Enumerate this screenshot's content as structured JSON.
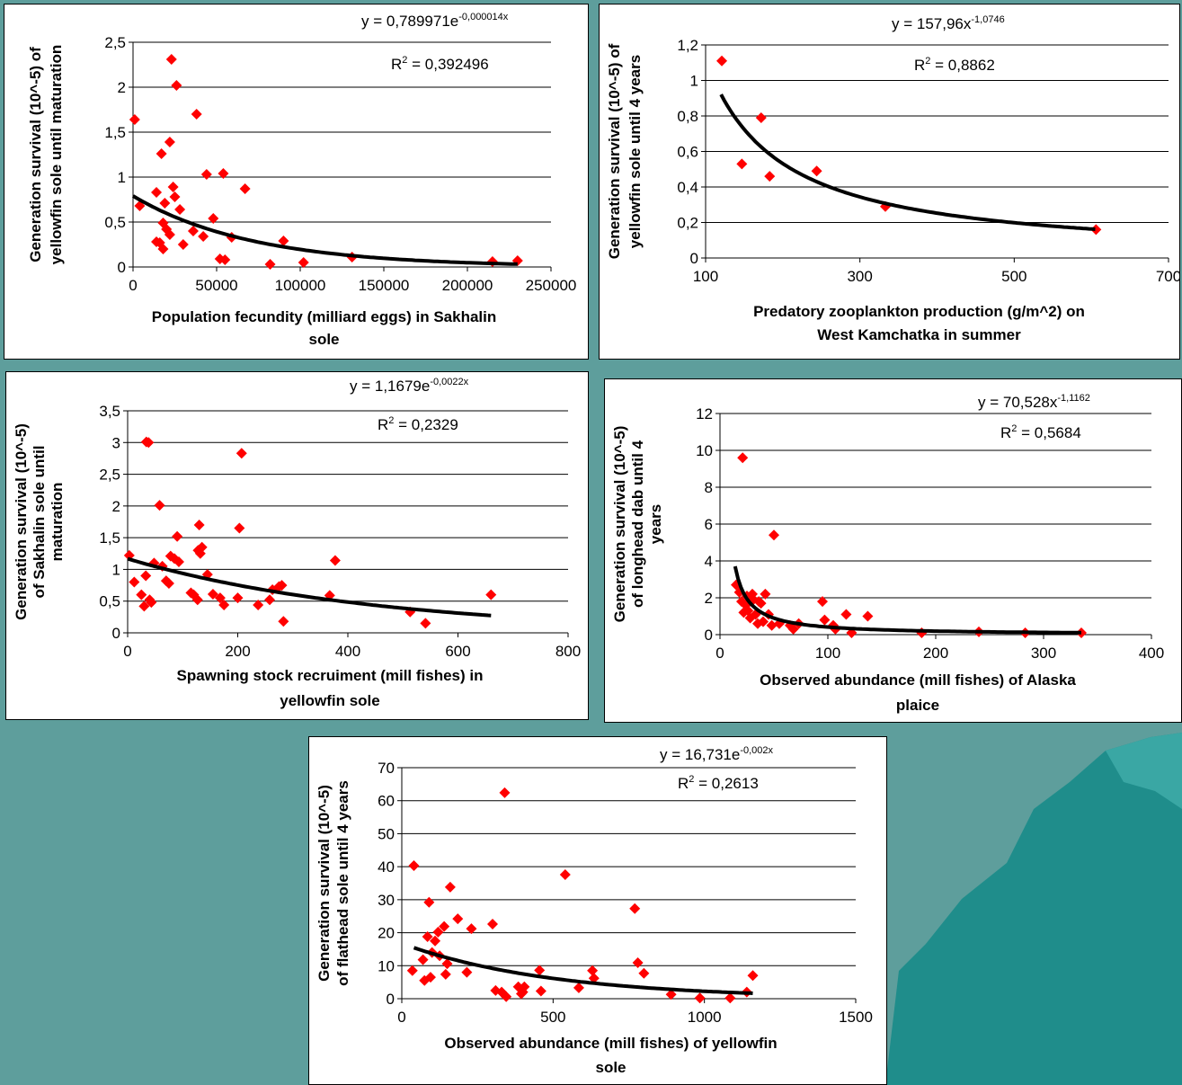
{
  "colors": {
    "background": "#5e9e9c",
    "panel": "#ffffff",
    "marker": "#ff0000",
    "trendline": "#000000",
    "gridline": "#000000"
  },
  "chart_data": [
    {
      "type": "scatter",
      "ylabel_lines": [
        "Generation survival (10^-5) of",
        "yellowfin sole until maturation"
      ],
      "xlabel_lines": [
        "Population fecundity (milliard eggs) in Sakhalin",
        "sole"
      ],
      "equation": {
        "prefix": "y = 0,789971e",
        "exponent": "-0,000014x"
      },
      "r2": {
        "prefix": "R",
        "sup": "2",
        "value": " = 0,392496"
      },
      "xlim": [
        0,
        250000
      ],
      "ylim": [
        0,
        2.5
      ],
      "xticks": [
        0,
        50000,
        100000,
        150000,
        200000,
        250000
      ],
      "yticks": [
        0,
        0.5,
        1,
        1.5,
        2,
        2.5
      ],
      "xtick_labels": [
        "0",
        "50000",
        "100000",
        "150000",
        "200000",
        "250000"
      ],
      "ytick_labels": [
        "0",
        "0,5",
        "1",
        "1,5",
        "2",
        "2,5"
      ],
      "grid": "horizontal",
      "trend": {
        "form": "exp",
        "a": 0.789971,
        "b": -1.4e-05,
        "x_range": [
          0,
          230000
        ]
      },
      "points": [
        [
          1000,
          1.64
        ],
        [
          4000,
          0.68
        ],
        [
          14000,
          0.83
        ],
        [
          14000,
          0.28
        ],
        [
          16000,
          0.27
        ],
        [
          17000,
          1.26
        ],
        [
          18000,
          0.49
        ],
        [
          18000,
          0.2
        ],
        [
          19000,
          0.71
        ],
        [
          20000,
          0.42
        ],
        [
          22000,
          1.39
        ],
        [
          22000,
          0.36
        ],
        [
          23000,
          2.31
        ],
        [
          24000,
          0.89
        ],
        [
          25000,
          0.78
        ],
        [
          26000,
          2.02
        ],
        [
          28000,
          0.64
        ],
        [
          30000,
          0.25
        ],
        [
          36000,
          0.4
        ],
        [
          38000,
          1.7
        ],
        [
          42000,
          0.34
        ],
        [
          44000,
          1.03
        ],
        [
          48000,
          0.54
        ],
        [
          52000,
          0.09
        ],
        [
          54000,
          1.04
        ],
        [
          55000,
          0.08
        ],
        [
          59000,
          0.33
        ],
        [
          67000,
          0.87
        ],
        [
          82000,
          0.03
        ],
        [
          90000,
          0.29
        ],
        [
          102000,
          0.05
        ],
        [
          131000,
          0.11
        ],
        [
          215000,
          0.06
        ],
        [
          230000,
          0.07
        ]
      ]
    },
    {
      "type": "scatter",
      "ylabel_lines": [
        "Generation survival (10^-5) of",
        "yellowfin sole until 4 years"
      ],
      "xlabel_lines": [
        "Predatory zooplankton production (g/m^2) on",
        "West Kamchatka in summer"
      ],
      "equation": {
        "prefix": "y = 157,96x",
        "exponent": "-1,0746"
      },
      "r2": {
        "prefix": "R",
        "sup": "2",
        "value": " = 0,8862"
      },
      "xlim": [
        100,
        700
      ],
      "ylim": [
        0,
        1.2
      ],
      "xticks": [
        100,
        300,
        500,
        700
      ],
      "yticks": [
        0,
        0.2,
        0.4,
        0.6,
        0.8,
        1,
        1.2
      ],
      "xtick_labels": [
        "100",
        "300",
        "500",
        "700"
      ],
      "ytick_labels": [
        "0",
        "0,2",
        "0,4",
        "0,6",
        "0,8",
        "1",
        "1,2"
      ],
      "grid": "horizontal",
      "trend": {
        "form": "power",
        "a": 157.96,
        "b": -1.0746,
        "x_range": [
          120,
          605
        ]
      },
      "points": [
        [
          121,
          1.11
        ],
        [
          147,
          0.53
        ],
        [
          172,
          0.79
        ],
        [
          183,
          0.46
        ],
        [
          244,
          0.49
        ],
        [
          333,
          0.29
        ],
        [
          606,
          0.16
        ]
      ]
    },
    {
      "type": "scatter",
      "ylabel_lines": [
        "Generation survival (10^-5)",
        "of Sakhalin sole until",
        "maturation"
      ],
      "xlabel_lines": [
        "Spawning stock recruiment (mill fishes) in",
        "yellowfin sole"
      ],
      "equation": {
        "prefix": "y = 1,1679e",
        "exponent": "-0,0022x"
      },
      "r2": {
        "prefix": "R",
        "sup": "2",
        "value": " = 0,2329"
      },
      "xlim": [
        0,
        800
      ],
      "ylim": [
        0,
        3.5
      ],
      "xticks": [
        0,
        200,
        400,
        600,
        800
      ],
      "yticks": [
        0,
        0.5,
        1,
        1.5,
        2,
        2.5,
        3,
        3.5
      ],
      "xtick_labels": [
        "0",
        "200",
        "400",
        "600",
        "800"
      ],
      "ytick_labels": [
        "0",
        "0,5",
        "1",
        "1,5",
        "2",
        "2,5",
        "3",
        "3,5"
      ],
      "grid": "horizontal",
      "trend": {
        "form": "exp",
        "a": 1.1679,
        "b": -0.0022,
        "x_range": [
          0,
          660
        ]
      },
      "points": [
        [
          3,
          1.22
        ],
        [
          12,
          0.8
        ],
        [
          25,
          0.6
        ],
        [
          30,
          0.42
        ],
        [
          33,
          0.9
        ],
        [
          34,
          3.01
        ],
        [
          38,
          3.0
        ],
        [
          40,
          0.52
        ],
        [
          43,
          0.48
        ],
        [
          48,
          1.1
        ],
        [
          58,
          2.01
        ],
        [
          63,
          1.05
        ],
        [
          70,
          0.82
        ],
        [
          75,
          0.78
        ],
        [
          78,
          1.21
        ],
        [
          85,
          1.17
        ],
        [
          90,
          1.52
        ],
        [
          93,
          1.12
        ],
        [
          115,
          0.63
        ],
        [
          120,
          0.6
        ],
        [
          127,
          0.52
        ],
        [
          128,
          1.3
        ],
        [
          130,
          1.7
        ],
        [
          132,
          1.25
        ],
        [
          135,
          1.35
        ],
        [
          145,
          0.92
        ],
        [
          155,
          0.61
        ],
        [
          168,
          0.55
        ],
        [
          175,
          0.44
        ],
        [
          200,
          0.55
        ],
        [
          203,
          1.65
        ],
        [
          207,
          2.83
        ],
        [
          237,
          0.44
        ],
        [
          258,
          0.52
        ],
        [
          263,
          0.68
        ],
        [
          275,
          0.73
        ],
        [
          280,
          0.75
        ],
        [
          283,
          0.18
        ],
        [
          367,
          0.59
        ],
        [
          377,
          1.14
        ],
        [
          513,
          0.33
        ],
        [
          541,
          0.15
        ],
        [
          660,
          0.6
        ]
      ]
    },
    {
      "type": "scatter",
      "ylabel_lines": [
        "Generation survival (10^-5)",
        "of longhead dab until 4",
        "years"
      ],
      "xlabel_lines": [
        "Observed abundance (mill fishes) of Alaska",
        "plaice"
      ],
      "equation": {
        "prefix": "y = 70,528x",
        "exponent": "-1,1162"
      },
      "r2": {
        "prefix": "R",
        "sup": "2",
        "value": " = 0,5684"
      },
      "xlim": [
        0,
        400
      ],
      "ylim": [
        0,
        12
      ],
      "xticks": [
        0,
        100,
        200,
        300,
        400
      ],
      "yticks": [
        0,
        2,
        4,
        6,
        8,
        10,
        12
      ],
      "xtick_labels": [
        "0",
        "100",
        "200",
        "300",
        "400"
      ],
      "ytick_labels": [
        "0",
        "2",
        "4",
        "6",
        "8",
        "10",
        "12"
      ],
      "grid": "horizontal",
      "trend": {
        "form": "power",
        "a": 70.528,
        "b": -1.1162,
        "x_range": [
          14,
          335
        ]
      },
      "points": [
        [
          15,
          2.7
        ],
        [
          18,
          2.3
        ],
        [
          20,
          1.8
        ],
        [
          21,
          9.6
        ],
        [
          22,
          1.2
        ],
        [
          24,
          1.6
        ],
        [
          25,
          2.1
        ],
        [
          26,
          1.3
        ],
        [
          28,
          0.9
        ],
        [
          30,
          2.2
        ],
        [
          31,
          1.9
        ],
        [
          33,
          1.1
        ],
        [
          35,
          0.6
        ],
        [
          36,
          1.8
        ],
        [
          38,
          1.7
        ],
        [
          40,
          0.7
        ],
        [
          42,
          2.2
        ],
        [
          45,
          1.1
        ],
        [
          48,
          0.5
        ],
        [
          50,
          5.4
        ],
        [
          55,
          0.6
        ],
        [
          65,
          0.5
        ],
        [
          68,
          0.3
        ],
        [
          73,
          0.6
        ],
        [
          95,
          1.8
        ],
        [
          97,
          0.8
        ],
        [
          105,
          0.5
        ],
        [
          107,
          0.3
        ],
        [
          117,
          1.1
        ],
        [
          122,
          0.1
        ],
        [
          137,
          1.0
        ],
        [
          187,
          0.1
        ],
        [
          240,
          0.15
        ],
        [
          283,
          0.1
        ],
        [
          335,
          0.1
        ]
      ]
    },
    {
      "type": "scatter",
      "ylabel_lines": [
        "Generation survival (10^-5)",
        "of flathead sole until 4 years"
      ],
      "xlabel_lines": [
        "Observed abundance (mill fishes) of yellowfin",
        "sole"
      ],
      "equation": {
        "prefix": "y = 16,731e",
        "exponent": "-0,002x"
      },
      "r2": {
        "prefix": "R",
        "sup": "2",
        "value": " = 0,2613"
      },
      "xlim": [
        0,
        1500
      ],
      "ylim": [
        0,
        70
      ],
      "xticks": [
        0,
        500,
        1000,
        1500
      ],
      "yticks": [
        0,
        10,
        20,
        30,
        40,
        50,
        60,
        70
      ],
      "xtick_labels": [
        "0",
        "500",
        "1000",
        "1500"
      ],
      "ytick_labels": [
        "0",
        "10",
        "20",
        "30",
        "40",
        "50",
        "60",
        "70"
      ],
      "grid": "horizontal",
      "trend": {
        "form": "exp",
        "a": 16.731,
        "b": -0.002,
        "x_range": [
          40,
          1160
        ]
      },
      "points": [
        [
          35,
          8.5
        ],
        [
          40,
          40.3
        ],
        [
          70,
          11.8
        ],
        [
          75,
          5.5
        ],
        [
          85,
          18.8
        ],
        [
          90,
          29.2
        ],
        [
          95,
          6.5
        ],
        [
          100,
          14.0
        ],
        [
          110,
          17.5
        ],
        [
          120,
          20.2
        ],
        [
          125,
          13.0
        ],
        [
          140,
          21.9
        ],
        [
          145,
          7.4
        ],
        [
          150,
          10.6
        ],
        [
          160,
          33.8
        ],
        [
          185,
          24.2
        ],
        [
          215,
          8.0
        ],
        [
          230,
          21.2
        ],
        [
          300,
          22.6
        ],
        [
          310,
          2.5
        ],
        [
          330,
          2.0
        ],
        [
          340,
          62.4
        ],
        [
          345,
          0.6
        ],
        [
          385,
          3.6
        ],
        [
          395,
          1.5
        ],
        [
          400,
          2.0
        ],
        [
          405,
          3.6
        ],
        [
          455,
          8.6
        ],
        [
          460,
          2.3
        ],
        [
          540,
          37.6
        ],
        [
          585,
          3.3
        ],
        [
          630,
          8.5
        ],
        [
          635,
          6.2
        ],
        [
          770,
          27.3
        ],
        [
          780,
          10.9
        ],
        [
          800,
          7.7
        ],
        [
          890,
          1.3
        ],
        [
          985,
          0.2
        ],
        [
          1085,
          0.2
        ],
        [
          1140,
          2.0
        ],
        [
          1160,
          7.0
        ]
      ]
    }
  ]
}
